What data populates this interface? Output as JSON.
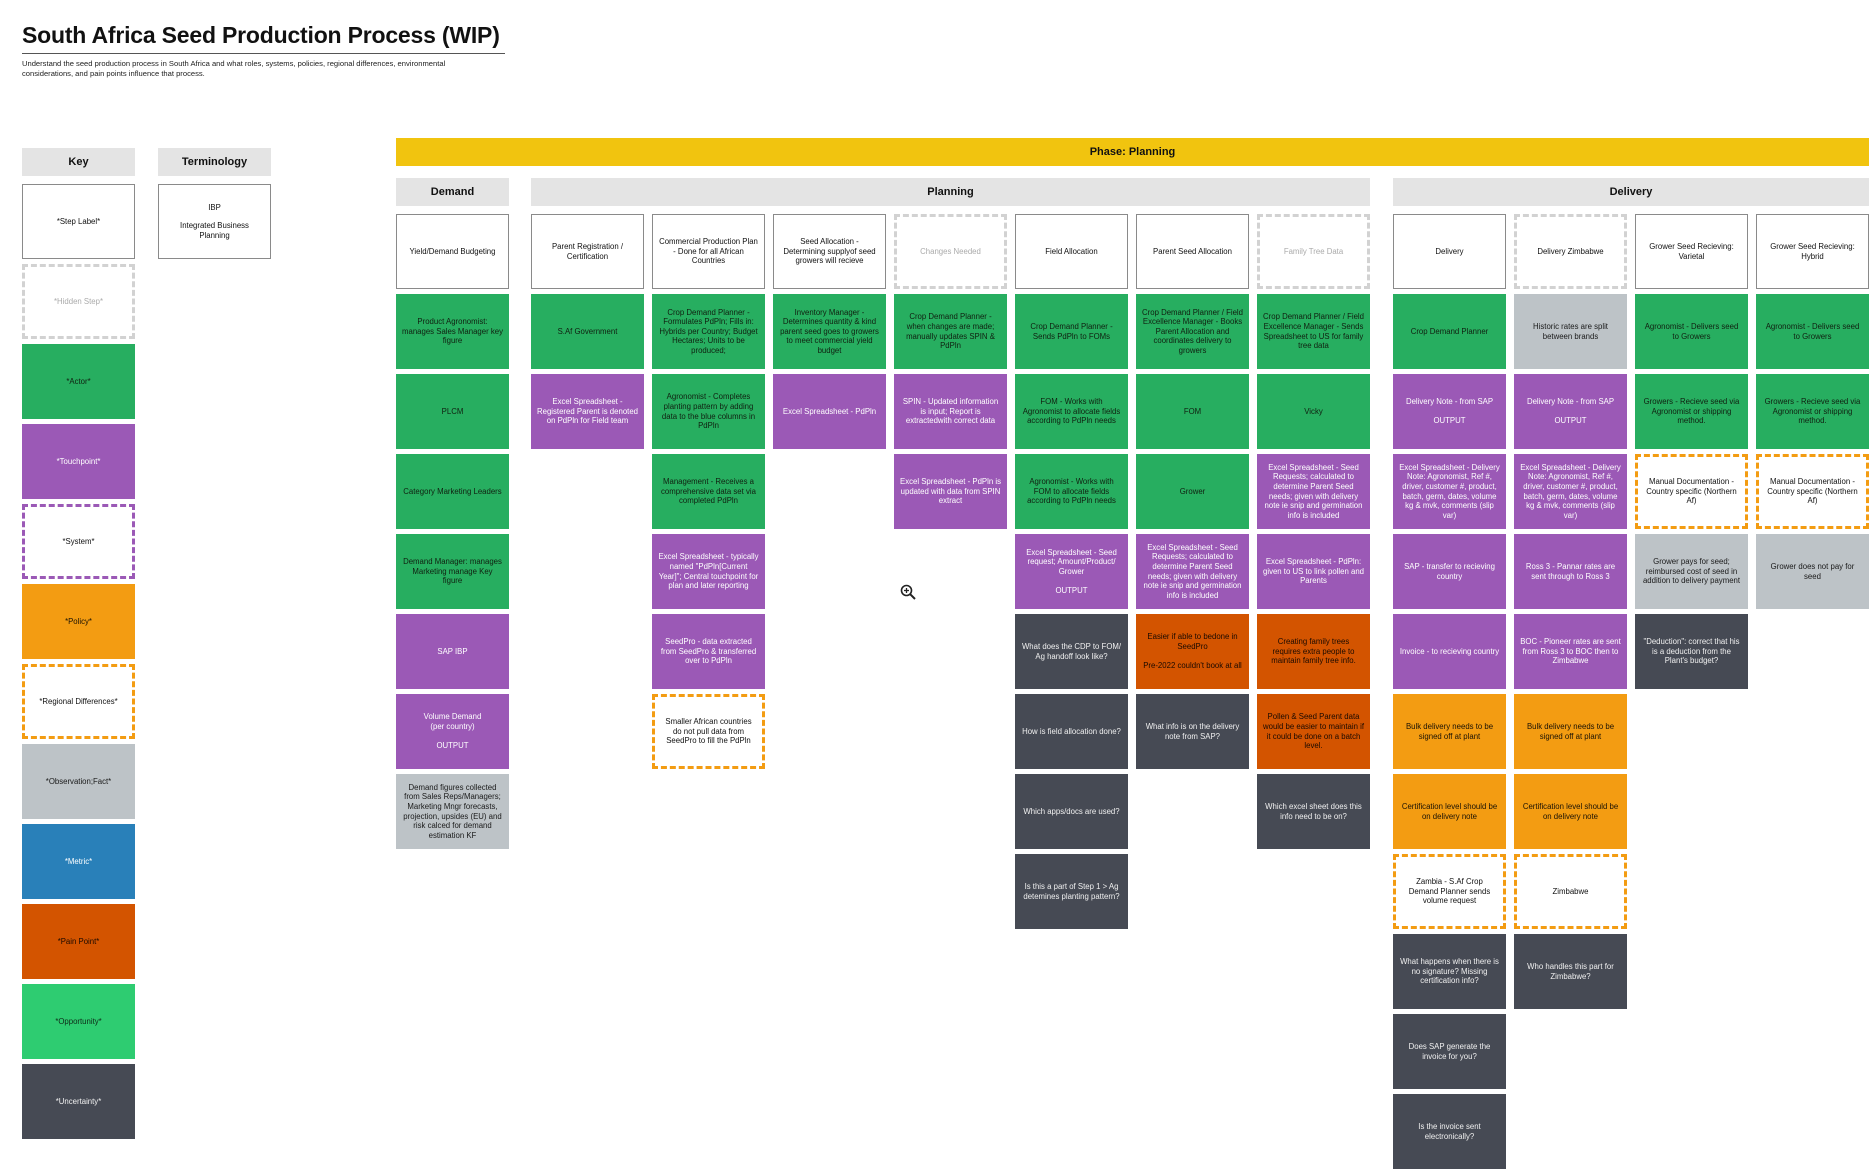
{
  "header": {
    "title": "South Africa Seed Production Process (WIP)",
    "subtitle": "Understand the seed production process in South Africa and what roles, systems, policies, regional differences, environmental considerations, and pain points influence that process."
  },
  "key": {
    "title": "Key",
    "items": [
      {
        "type": "step",
        "label": "*Step Label*"
      },
      {
        "type": "hidden",
        "label": "*Hidden Step*"
      },
      {
        "type": "actor",
        "label": "*Actor*"
      },
      {
        "type": "touch",
        "label": "*Touchpoint*"
      },
      {
        "type": "system",
        "label": "*System*"
      },
      {
        "type": "policy",
        "label": "*Policy*"
      },
      {
        "type": "regional",
        "label": "*Regional Differences*"
      },
      {
        "type": "obs",
        "label": "*Observation;Fact*"
      },
      {
        "type": "metric",
        "label": "*Metric*"
      },
      {
        "type": "pain",
        "label": "*Pain Point*"
      },
      {
        "type": "opp",
        "label": "*Opportunity*"
      },
      {
        "type": "unc",
        "label": "*Uncertainty*"
      }
    ]
  },
  "colors": {
    "actor": "#27ae60",
    "touchpoint": "#9b59b6",
    "policy": "#f39c12",
    "observation": "#bdc3c7",
    "metric": "#2980b9",
    "pain_point": "#d35400",
    "opportunity": "#2ecc71",
    "uncertainty": "#464a54",
    "phase": "#f1c40f"
  },
  "terminology": {
    "title": "Terminology",
    "items": [
      {
        "term": "IBP",
        "definition": "Integrated Business Planning"
      }
    ]
  },
  "phase": {
    "label": "Phase: Planning"
  },
  "sections": [
    {
      "label": "Demand"
    },
    {
      "label": "Planning"
    },
    {
      "label": "Delivery"
    }
  ],
  "columns": [
    {
      "section": 0,
      "step": "Yield/Demand Budgeting",
      "hidden": false,
      "cards": [
        {
          "type": "actor",
          "text": "Product Agronomist: manages Sales Manager key figure"
        },
        {
          "type": "actor",
          "text": "PLCM"
        },
        {
          "type": "actor",
          "text": "Category Marketing Leaders"
        },
        {
          "type": "actor",
          "text": "Demand Manager: manages Marketing manage Key figure"
        },
        {
          "type": "touch",
          "text": "SAP IBP"
        },
        {
          "type": "touch",
          "text": "Volume Demand\n(per country)\n\nOUTPUT"
        },
        {
          "type": "obs",
          "text": "Demand figures collected from Sales Reps/Managers; Marketing Mngr forecasts, projection, upsides (EU) and risk calced for demand estimation KF"
        }
      ]
    },
    {
      "section": 1,
      "step": "Parent Registration / Certification",
      "hidden": false,
      "cards": [
        {
          "type": "actor",
          "text": "S.Af Government"
        },
        {
          "type": "touch",
          "text": "Excel Spreadsheet - Registered Parent is denoted on PdPln for Field team"
        }
      ]
    },
    {
      "section": 1,
      "step": "Commercial Production Plan - Done for all African Countries",
      "hidden": false,
      "cards": [
        {
          "type": "actor",
          "text": "Crop Demand Planner - Formulates PdPln; Fills in: Hybrids per Country; Budget Hectares; Units to be produced;"
        },
        {
          "type": "actor",
          "text": "Agronomist - Completes planting pattern by adding data to the blue columns in PdPln"
        },
        {
          "type": "actor",
          "text": "Management - Receives a comprehensive data set via completed PdPln"
        },
        {
          "type": "touch",
          "text": "Excel Spreadsheet - typically named \"PdPln[Current Year]\"; Central touchpoint for plan and later reporting"
        },
        {
          "type": "touch",
          "text": "SeedPro - data extracted from SeedPro & transferred over to PdPln"
        },
        {
          "type": "regional",
          "text": "Smaller African countries do not pull data from SeedPro to fill the PdPln"
        }
      ]
    },
    {
      "section": 1,
      "step": "Seed Allocation - Determining supplyof seed growers will recieve",
      "hidden": false,
      "cards": [
        {
          "type": "actor",
          "text": "Inventory Manager - Determines quantity & kind parent seed goes to growers to meet commercial yield budget"
        },
        {
          "type": "touch",
          "text": "Excel Spreadsheet - PdPln"
        }
      ]
    },
    {
      "section": 1,
      "step": "Changes Needed",
      "hidden": true,
      "cards": [
        {
          "type": "actor",
          "text": "Crop Demand Planner - when changes are made; manually updates SPIN & PdPln"
        },
        {
          "type": "touch",
          "text": "SPIN - Updated information is input; Report is extractedwith correct data"
        },
        {
          "type": "touch",
          "text": "Excel Spreadsheet - PdPln is updated with data from SPIN extract"
        }
      ]
    },
    {
      "section": 1,
      "step": "Field Allocation",
      "hidden": false,
      "cards": [
        {
          "type": "actor",
          "text": "Crop Demand Planner - Sends PdPln to FOMs"
        },
        {
          "type": "actor",
          "text": "FOM - Works with Agronomist to allocate fields according to PdPln needs"
        },
        {
          "type": "actor",
          "text": "Agronomist - Works with FOM to allocate fields according to PdPln needs"
        },
        {
          "type": "touch",
          "text": "Excel Spreadsheet - Seed request; Amount/Product/ Grower\n\nOUTPUT"
        },
        {
          "type": "unc",
          "text": "What does the CDP to FOM/ Ag handoff look like?"
        },
        {
          "type": "unc",
          "text": "How is field allocation done?"
        },
        {
          "type": "unc",
          "text": "Which apps/docs are used?"
        },
        {
          "type": "unc",
          "text": "Is this a part of Step 1 > Ag detemines planting pattern?"
        }
      ]
    },
    {
      "section": 1,
      "step": "Parent Seed Allocation",
      "hidden": false,
      "cards": [
        {
          "type": "actor",
          "text": "Crop Demand Planner / Field Excellence Manager - Books Parent Allocation and coordinates delivery to growers"
        },
        {
          "type": "actor",
          "text": "FOM"
        },
        {
          "type": "actor",
          "text": "Grower"
        },
        {
          "type": "touch",
          "text": "Excel Spreadsheet - Seed Requests; calculated to determine Parent Seed needs; given with delivery note ie snip and germination info is included"
        },
        {
          "type": "pain",
          "text": "Easier if able to bedone in SeedPro\n\nPre-2022 couldn't book at all"
        },
        {
          "type": "unc",
          "text": "What info is on the delivery note from SAP?"
        }
      ]
    },
    {
      "section": 1,
      "step": "Family Tree Data",
      "hidden": true,
      "cards": [
        {
          "type": "actor",
          "text": "Crop Demand Planner / Field Excellence Manager - Sends Spreadsheet to US for family tree data"
        },
        {
          "type": "actor",
          "text": "Vicky"
        },
        {
          "type": "touch",
          "text": "Excel Spreadsheet - Seed Requests; calculated to determine Parent Seed needs; given with delivery note ie snip and germination info is included"
        },
        {
          "type": "touch",
          "text": "Excel Spreadsheet - PdPln: given to US to link pollen and Parents"
        },
        {
          "type": "pain",
          "text": "Creating family trees requires extra people to maintain family tree info."
        },
        {
          "type": "pain",
          "text": "Pollen & Seed Parent data would be easier to maintain if it could be done on a batch level."
        },
        {
          "type": "unc",
          "text": "Which excel sheet does this info need to be on?"
        }
      ]
    },
    {
      "section": 2,
      "step": "Delivery",
      "hidden": false,
      "cards": [
        {
          "type": "actor",
          "text": "Crop Demand Planner"
        },
        {
          "type": "touch",
          "text": "Delivery Note - from SAP\n\nOUTPUT"
        },
        {
          "type": "touch",
          "text": "Excel Spreadsheet - Delivery Note: Agronomist, Ref #, driver, customer #, product, batch, germ, dates, volume kg & mvk, comments (slip var)"
        },
        {
          "type": "touch",
          "text": "SAP - transfer to recieving country"
        },
        {
          "type": "touch",
          "text": "Invoice - to recieving country"
        },
        {
          "type": "policy",
          "text": "Bulk delivery needs to be signed off at plant"
        },
        {
          "type": "policy",
          "text": "Certification level should be on delivery note"
        },
        {
          "type": "regional",
          "text": "Zambia - S.Af Crop Demand Planner sends volume request"
        },
        {
          "type": "unc",
          "text": "What happens when there is no signature? Missing certification info?"
        },
        {
          "type": "unc",
          "text": "Does SAP generate the invoice for you?"
        },
        {
          "type": "unc",
          "text": "Is the invoice sent electronically?"
        }
      ]
    },
    {
      "section": 2,
      "step": "Delivery Zimbabwe",
      "hidden": true,
      "hiddenDark": true,
      "cards": [
        {
          "type": "obs",
          "text": "Historic rates are split between brands"
        },
        {
          "type": "touch",
          "text": "Delivery Note - from SAP\n\nOUTPUT"
        },
        {
          "type": "touch",
          "text": "Excel Spreadsheet - Delivery Note: Agronomist, Ref #, driver, customer #, product, batch, germ, dates, volume kg & mvk, comments (slip var)"
        },
        {
          "type": "touch",
          "text": "Ross 3 - Pannar rates are sent through to Ross 3"
        },
        {
          "type": "touch",
          "text": "BOC - Pioneer rates are sent from Ross 3 to BOC then to Zimbabwe"
        },
        {
          "type": "policy",
          "text": "Bulk delivery needs to be signed off at plant"
        },
        {
          "type": "policy",
          "text": "Certification level should be on delivery note"
        },
        {
          "type": "regional",
          "text": "Zimbabwe"
        },
        {
          "type": "unc",
          "text": "Who handles this part for Zimbabwe?"
        }
      ]
    },
    {
      "section": 2,
      "step": "Grower Seed Recieving: Varietal",
      "hidden": false,
      "cards": [
        {
          "type": "actor",
          "text": "Agronomist - Delivers seed to Growers"
        },
        {
          "type": "actor",
          "text": "Growers - Recieve seed via Agronomist or shipping method."
        },
        {
          "type": "regional",
          "text": "Manual Documentation - Country specific (Northern Af)"
        },
        {
          "type": "obs",
          "text": "Grower pays for seed; reimbursed cost of seed in addition to delivery payment"
        },
        {
          "type": "unc",
          "text": "\"Deduction\": correct that his is a deduction from the Plant's budget?"
        }
      ]
    },
    {
      "section": 2,
      "step": "Grower Seed Recieving: Hybrid",
      "hidden": false,
      "cards": [
        {
          "type": "actor",
          "text": "Agronomist - Delivers seed to Growers"
        },
        {
          "type": "actor",
          "text": "Growers - Recieve seed via Agronomist or shipping method."
        },
        {
          "type": "regional",
          "text": "Manual Documentation - Country specific (Northern Af)"
        },
        {
          "type": "obs",
          "text": "Grower does not pay for seed"
        }
      ]
    }
  ]
}
